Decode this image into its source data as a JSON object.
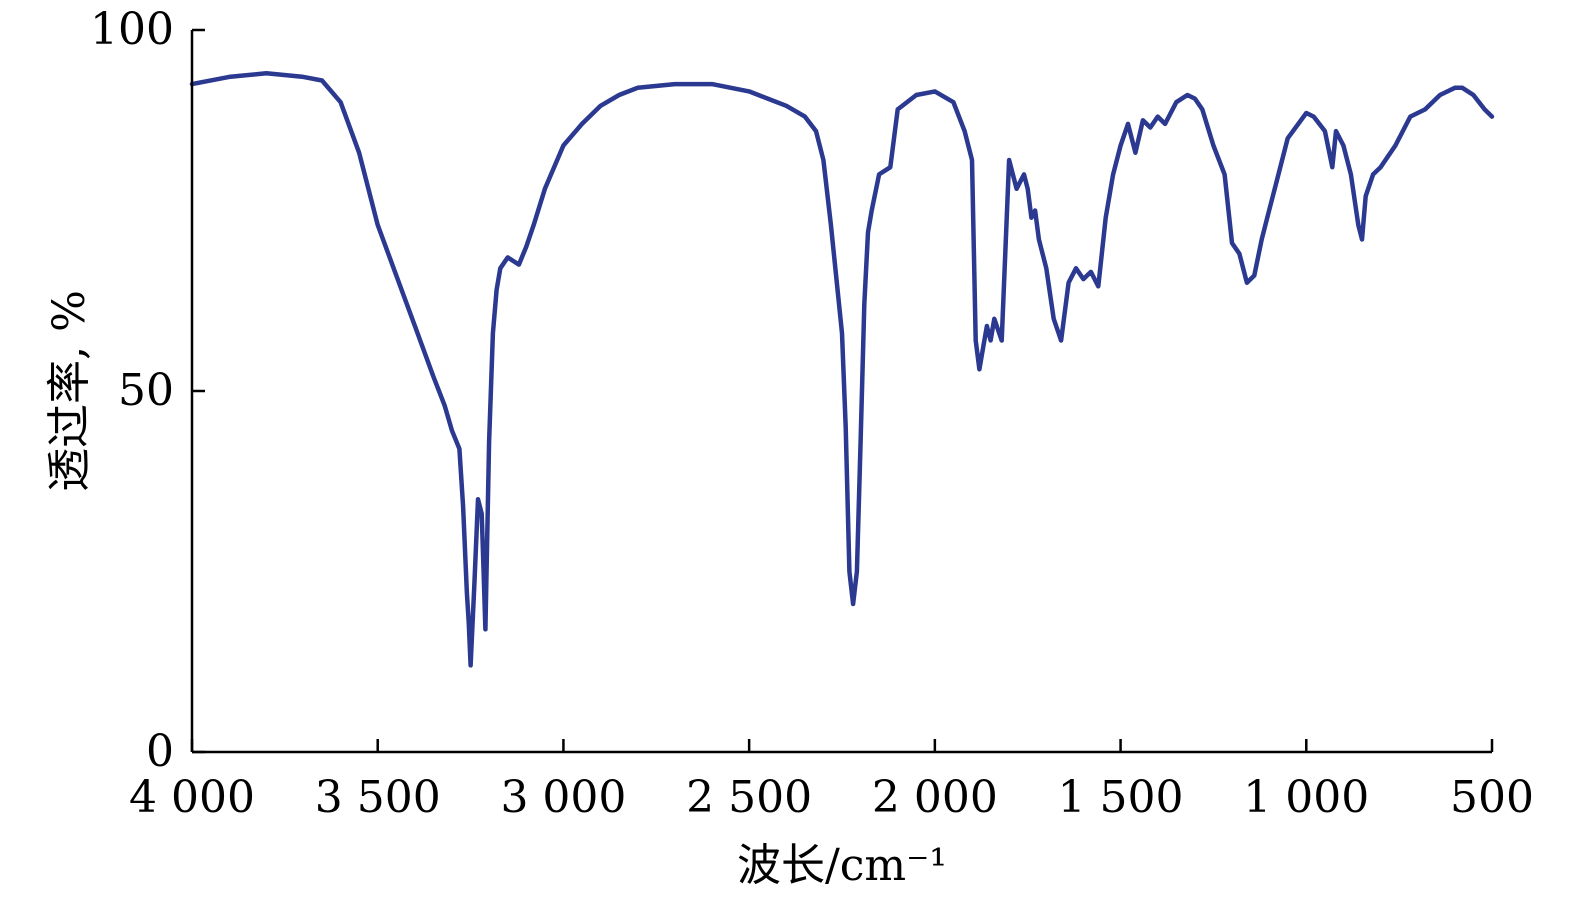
{
  "chart_data": {
    "type": "line",
    "title": "",
    "xlabel": "波长/cm⁻¹",
    "ylabel": "透过率, %",
    "xlim": [
      4000,
      500
    ],
    "ylim": [
      0,
      100
    ],
    "x_reversed": true,
    "grid": false,
    "x_ticks": [
      4000,
      3500,
      3000,
      2500,
      2000,
      1500,
      1000,
      500
    ],
    "x_tick_labels": [
      "4 000",
      "3 500",
      "3 000",
      "2 500",
      "2 000",
      "1 500",
      "1 000",
      "500"
    ],
    "y_ticks": [
      0,
      50,
      100
    ],
    "y_tick_labels": [
      "0",
      "50",
      "100"
    ],
    "line_color": "#2b3990",
    "series": [
      {
        "x": [
          4000,
          3900,
          3800,
          3700,
          3650,
          3600,
          3550,
          3500,
          3450,
          3400,
          3350,
          3320,
          3300,
          3280,
          3270,
          3260,
          3255,
          3250,
          3240,
          3230,
          3220,
          3215,
          3210,
          3200,
          3190,
          3180,
          3170,
          3150,
          3120,
          3100,
          3080,
          3050,
          3000,
          2950,
          2900,
          2850,
          2800,
          2700,
          2600,
          2500,
          2450,
          2400,
          2350,
          2320,
          2300,
          2280,
          2260,
          2250,
          2240,
          2230,
          2220,
          2210,
          2200,
          2190,
          2180,
          2170,
          2150,
          2120,
          2100,
          2050,
          2000,
          1950,
          1920,
          1900,
          1890,
          1880,
          1870,
          1860,
          1850,
          1840,
          1820,
          1800,
          1780,
          1760,
          1750,
          1740,
          1730,
          1720,
          1700,
          1680,
          1660,
          1640,
          1620,
          1600,
          1590,
          1580,
          1560,
          1540,
          1520,
          1500,
          1480,
          1460,
          1440,
          1420,
          1400,
          1380,
          1350,
          1320,
          1300,
          1280,
          1250,
          1220,
          1200,
          1180,
          1160,
          1140,
          1120,
          1100,
          1080,
          1050,
          1000,
          980,
          950,
          930,
          920,
          900,
          880,
          860,
          850,
          840,
          820,
          800,
          760,
          720,
          680,
          640,
          600,
          580,
          550,
          520,
          500
        ],
        "y": [
          92.5,
          93.5,
          94.0,
          93.5,
          93.0,
          90.0,
          83.0,
          73.0,
          66.0,
          59.0,
          52.0,
          48.0,
          44.5,
          42.0,
          34.0,
          22.0,
          18.0,
          12.0,
          23.0,
          35.0,
          33.0,
          25.0,
          17.0,
          43.0,
          58.0,
          64.0,
          67.0,
          68.5,
          67.5,
          70.0,
          73.0,
          78.0,
          84.0,
          87.0,
          89.5,
          91.0,
          92.0,
          92.5,
          92.5,
          91.5,
          90.5,
          89.5,
          88.0,
          86.0,
          82.0,
          73.0,
          63.0,
          58.0,
          45.0,
          25.0,
          20.5,
          25.0,
          43.0,
          62.0,
          72.0,
          75.0,
          80.0,
          81.0,
          89.0,
          91.0,
          91.5,
          90.0,
          86.0,
          82.0,
          57.0,
          53.0,
          56.0,
          59.0,
          57.0,
          60.0,
          57.0,
          82.0,
          78.0,
          80.0,
          78.0,
          74.0,
          75.0,
          71.0,
          67.0,
          60.0,
          57.0,
          65.0,
          67.0,
          65.5,
          66.0,
          66.5,
          64.5,
          74.0,
          80.0,
          84.0,
          87.0,
          83.0,
          87.5,
          86.5,
          88.0,
          87.0,
          90.0,
          91.0,
          90.5,
          89.0,
          84.0,
          80.0,
          70.5,
          69.0,
          65.0,
          66.0,
          71.0,
          75.0,
          79.0,
          85.0,
          88.5,
          88.0,
          86.0,
          81.0,
          86.0,
          84.0,
          80.0,
          73.0,
          71.0,
          77.0,
          80.0,
          81.0,
          84.0,
          88.0,
          89.0,
          91.0,
          92.0,
          92.0,
          91.0,
          89.0,
          88.0
        ]
      }
    ]
  }
}
